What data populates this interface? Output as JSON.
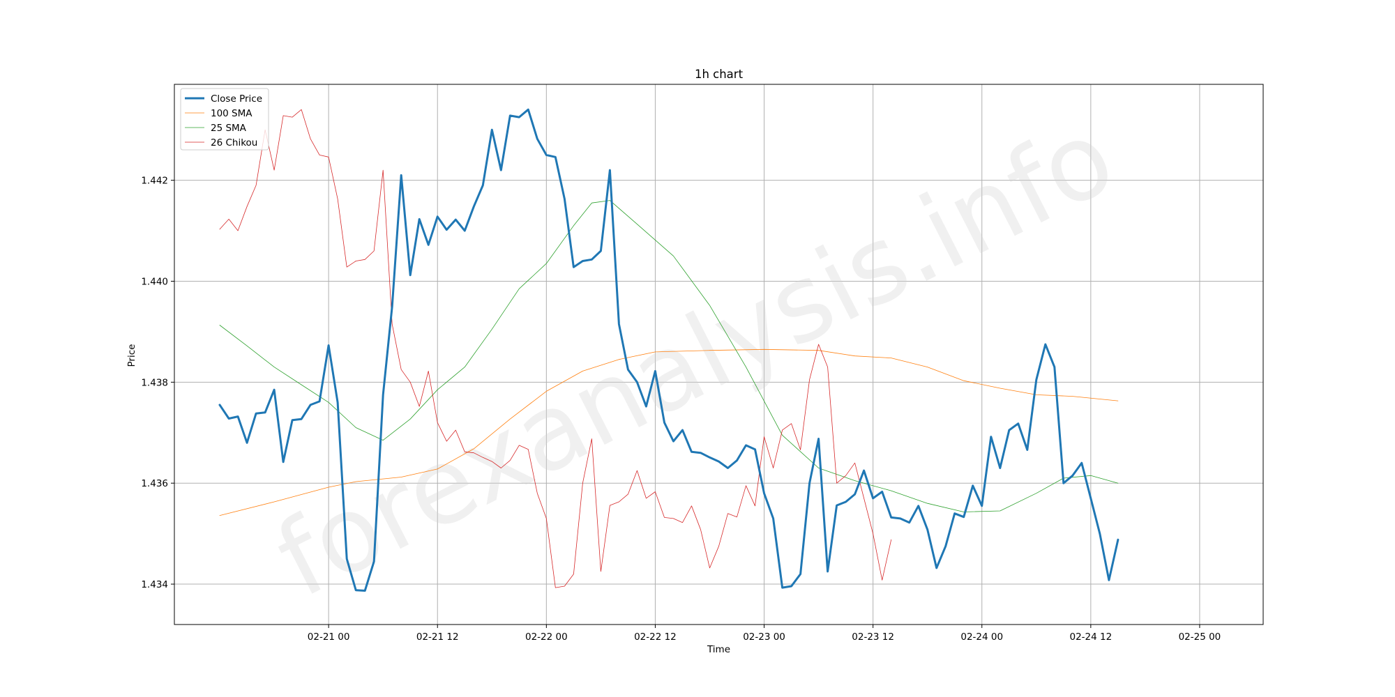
{
  "watermark": "forexanalysis.info",
  "chart_data": {
    "type": "line",
    "title": "1h chart",
    "xlabel": "Time",
    "ylabel": "Price",
    "xlim": [
      "2024-02-20 07:00",
      "2024-02-25 07:00"
    ],
    "ylim": [
      1.4332,
      1.4439
    ],
    "x_ticks": [
      {
        "at": "2024-02-21 00:00",
        "label": "02-21 00"
      },
      {
        "at": "2024-02-21 12:00",
        "label": "02-21 12"
      },
      {
        "at": "2024-02-22 00:00",
        "label": "02-22 00"
      },
      {
        "at": "2024-02-22 12:00",
        "label": "02-22 12"
      },
      {
        "at": "2024-02-23 00:00",
        "label": "02-23 00"
      },
      {
        "at": "2024-02-23 12:00",
        "label": "02-23 12"
      },
      {
        "at": "2024-02-24 00:00",
        "label": "02-24 00"
      },
      {
        "at": "2024-02-24 12:00",
        "label": "02-24 12"
      },
      {
        "at": "2024-02-25 00:00",
        "label": "02-25 00"
      }
    ],
    "y_ticks": [
      {
        "value": 1.434,
        "label": "1.434"
      },
      {
        "value": 1.436,
        "label": "1.436"
      },
      {
        "value": 1.438,
        "label": "1.438"
      },
      {
        "value": 1.44,
        "label": "1.440"
      },
      {
        "value": 1.442,
        "label": "1.442"
      }
    ],
    "grid": true,
    "legend_position": "top-left",
    "series": [
      {
        "name": "Close Price",
        "color": "#1f77b4",
        "width": 3,
        "points": [
          [
            "2024-02-20 12:00",
            1.43755
          ],
          [
            "2024-02-20 13:00",
            1.43728
          ],
          [
            "2024-02-20 14:00",
            1.43732
          ],
          [
            "2024-02-20 15:00",
            1.4368
          ],
          [
            "2024-02-20 16:00",
            1.43738
          ],
          [
            "2024-02-20 17:00",
            1.4374
          ],
          [
            "2024-02-20 18:00",
            1.43785
          ],
          [
            "2024-02-20 19:00",
            1.43642
          ],
          [
            "2024-02-20 20:00",
            1.43725
          ],
          [
            "2024-02-20 21:00",
            1.43727
          ],
          [
            "2024-02-20 22:00",
            1.43755
          ],
          [
            "2024-02-20 23:00",
            1.43762
          ],
          [
            "2024-02-21 00:00",
            1.43873
          ],
          [
            "2024-02-21 01:00",
            1.4376
          ],
          [
            "2024-02-21 02:00",
            1.4345
          ],
          [
            "2024-02-21 03:00",
            1.43388
          ],
          [
            "2024-02-21 04:00",
            1.43387
          ],
          [
            "2024-02-21 05:00",
            1.43445
          ],
          [
            "2024-02-21 06:00",
            1.43775
          ],
          [
            "2024-02-21 07:00",
            1.4395
          ],
          [
            "2024-02-21 08:00",
            1.4421
          ],
          [
            "2024-02-21 09:00",
            1.44012
          ],
          [
            "2024-02-21 10:00",
            1.44123
          ],
          [
            "2024-02-21 11:00",
            1.44072
          ],
          [
            "2024-02-21 12:00",
            1.44128
          ],
          [
            "2024-02-21 13:00",
            1.44102
          ],
          [
            "2024-02-21 14:00",
            1.44122
          ],
          [
            "2024-02-21 15:00",
            1.441
          ],
          [
            "2024-02-21 16:00",
            1.44148
          ],
          [
            "2024-02-21 17:00",
            1.4419
          ],
          [
            "2024-02-21 18:00",
            1.443
          ],
          [
            "2024-02-21 19:00",
            1.4422
          ],
          [
            "2024-02-21 20:00",
            1.44328
          ],
          [
            "2024-02-21 21:00",
            1.44325
          ],
          [
            "2024-02-21 22:00",
            1.4434
          ],
          [
            "2024-02-21 23:00",
            1.44282
          ],
          [
            "2024-02-22 00:00",
            1.4425
          ],
          [
            "2024-02-22 01:00",
            1.44246
          ],
          [
            "2024-02-22 02:00",
            1.44163
          ],
          [
            "2024-02-22 03:00",
            1.44028
          ],
          [
            "2024-02-22 04:00",
            1.4404
          ],
          [
            "2024-02-22 05:00",
            1.44043
          ],
          [
            "2024-02-22 06:00",
            1.4406
          ],
          [
            "2024-02-22 07:00",
            1.4422
          ],
          [
            "2024-02-22 08:00",
            1.43915
          ],
          [
            "2024-02-22 09:00",
            1.43825
          ],
          [
            "2024-02-22 10:00",
            1.438
          ],
          [
            "2024-02-22 11:00",
            1.43752
          ],
          [
            "2024-02-22 12:00",
            1.43822
          ],
          [
            "2024-02-22 13:00",
            1.4372
          ],
          [
            "2024-02-22 14:00",
            1.43683
          ],
          [
            "2024-02-22 15:00",
            1.43705
          ],
          [
            "2024-02-22 16:00",
            1.43662
          ],
          [
            "2024-02-22 17:00",
            1.4366
          ],
          [
            "2024-02-22 18:00",
            1.43651
          ],
          [
            "2024-02-22 19:00",
            1.43643
          ],
          [
            "2024-02-22 20:00",
            1.4363
          ],
          [
            "2024-02-22 21:00",
            1.43645
          ],
          [
            "2024-02-22 22:00",
            1.43675
          ],
          [
            "2024-02-22 23:00",
            1.43667
          ],
          [
            "2024-02-23 00:00",
            1.4358
          ],
          [
            "2024-02-23 01:00",
            1.4353
          ],
          [
            "2024-02-23 02:00",
            1.43393
          ],
          [
            "2024-02-23 03:00",
            1.43396
          ],
          [
            "2024-02-23 04:00",
            1.4342
          ],
          [
            "2024-02-23 05:00",
            1.436
          ],
          [
            "2024-02-23 06:00",
            1.43688
          ],
          [
            "2024-02-23 07:00",
            1.43425
          ],
          [
            "2024-02-23 08:00",
            1.43556
          ],
          [
            "2024-02-23 09:00",
            1.43563
          ],
          [
            "2024-02-23 10:00",
            1.43578
          ],
          [
            "2024-02-23 11:00",
            1.43625
          ],
          [
            "2024-02-23 12:00",
            1.4357
          ],
          [
            "2024-02-23 13:00",
            1.43583
          ],
          [
            "2024-02-23 14:00",
            1.43532
          ],
          [
            "2024-02-23 15:00",
            1.4353
          ],
          [
            "2024-02-23 16:00",
            1.43522
          ],
          [
            "2024-02-23 17:00",
            1.43555
          ],
          [
            "2024-02-23 18:00",
            1.43508
          ],
          [
            "2024-02-23 19:00",
            1.43432
          ],
          [
            "2024-02-23 20:00",
            1.43475
          ],
          [
            "2024-02-23 21:00",
            1.4354
          ],
          [
            "2024-02-23 22:00",
            1.43533
          ],
          [
            "2024-02-23 23:00",
            1.43595
          ],
          [
            "2024-02-24 00:00",
            1.43555
          ],
          [
            "2024-02-24 01:00",
            1.43692
          ],
          [
            "2024-02-24 02:00",
            1.4363
          ],
          [
            "2024-02-24 03:00",
            1.43705
          ],
          [
            "2024-02-24 04:00",
            1.43718
          ],
          [
            "2024-02-24 05:00",
            1.43666
          ],
          [
            "2024-02-24 06:00",
            1.43805
          ],
          [
            "2024-02-24 07:00",
            1.43875
          ],
          [
            "2024-02-24 08:00",
            1.4383
          ],
          [
            "2024-02-24 09:00",
            1.436
          ],
          [
            "2024-02-24 10:00",
            1.43615
          ],
          [
            "2024-02-24 11:00",
            1.4364
          ],
          [
            "2024-02-24 12:00",
            1.4357
          ],
          [
            "2024-02-24 13:00",
            1.435
          ],
          [
            "2024-02-24 14:00",
            1.43408
          ],
          [
            "2024-02-24 15:00",
            1.43488
          ]
        ]
      },
      {
        "name": "100 SMA",
        "color": "#ff7f0e",
        "width": 0.8,
        "points": [
          [
            "2024-02-20 12:00",
            1.43536
          ],
          [
            "2024-02-20 18:00",
            1.43563
          ],
          [
            "2024-02-21 00:00",
            1.43592
          ],
          [
            "2024-02-21 03:00",
            1.43603
          ],
          [
            "2024-02-21 08:00",
            1.43612
          ],
          [
            "2024-02-21 12:00",
            1.43628
          ],
          [
            "2024-02-21 16:00",
            1.43668
          ],
          [
            "2024-02-21 20:00",
            1.43727
          ],
          [
            "2024-02-22 00:00",
            1.43782
          ],
          [
            "2024-02-22 04:00",
            1.43822
          ],
          [
            "2024-02-22 08:00",
            1.43845
          ],
          [
            "2024-02-22 12:00",
            1.4386
          ],
          [
            "2024-02-22 18:00",
            1.43863
          ],
          [
            "2024-02-23 00:00",
            1.43865
          ],
          [
            "2024-02-23 06:00",
            1.43863
          ],
          [
            "2024-02-23 10:00",
            1.43852
          ],
          [
            "2024-02-23 14:00",
            1.43848
          ],
          [
            "2024-02-23 18:00",
            1.4383
          ],
          [
            "2024-02-23 22:00",
            1.43803
          ],
          [
            "2024-02-24 02:00",
            1.43788
          ],
          [
            "2024-02-24 06:00",
            1.43775
          ],
          [
            "2024-02-24 10:00",
            1.43772
          ],
          [
            "2024-02-24 15:00",
            1.43763
          ]
        ]
      },
      {
        "name": "25 SMA",
        "color": "#2ca02c",
        "width": 0.8,
        "points": [
          [
            "2024-02-20 12:00",
            1.43913
          ],
          [
            "2024-02-20 15:00",
            1.43872
          ],
          [
            "2024-02-20 18:00",
            1.4383
          ],
          [
            "2024-02-20 21:00",
            1.43795
          ],
          [
            "2024-02-21 00:00",
            1.4376
          ],
          [
            "2024-02-21 03:00",
            1.4371
          ],
          [
            "2024-02-21 06:00",
            1.43685
          ],
          [
            "2024-02-21 09:00",
            1.43727
          ],
          [
            "2024-02-21 12:00",
            1.43785
          ],
          [
            "2024-02-21 15:00",
            1.4383
          ],
          [
            "2024-02-21 18:00",
            1.43905
          ],
          [
            "2024-02-21 21:00",
            1.43985
          ],
          [
            "2024-02-22 00:00",
            1.44035
          ],
          [
            "2024-02-22 03:00",
            1.4411
          ],
          [
            "2024-02-22 05:00",
            1.44155
          ],
          [
            "2024-02-22 07:00",
            1.4416
          ],
          [
            "2024-02-22 10:00",
            1.44113
          ],
          [
            "2024-02-22 14:00",
            1.4405
          ],
          [
            "2024-02-22 18:00",
            1.43952
          ],
          [
            "2024-02-22 22:00",
            1.4383
          ],
          [
            "2024-02-23 02:00",
            1.43695
          ],
          [
            "2024-02-23 06:00",
            1.4363
          ],
          [
            "2024-02-23 10:00",
            1.43605
          ],
          [
            "2024-02-23 14:00",
            1.43585
          ],
          [
            "2024-02-23 18:00",
            1.4356
          ],
          [
            "2024-02-23 22:00",
            1.43543
          ],
          [
            "2024-02-24 02:00",
            1.43545
          ],
          [
            "2024-02-24 06:00",
            1.4358
          ],
          [
            "2024-02-24 09:00",
            1.4361
          ],
          [
            "2024-02-24 12:00",
            1.43615
          ],
          [
            "2024-02-24 15:00",
            1.436
          ]
        ]
      },
      {
        "name": "26 Chikou",
        "color": "#d62728",
        "width": 0.8,
        "points": [
          [
            "2024-02-20 12:00",
            1.44103
          ],
          [
            "2024-02-20 13:00",
            1.44123
          ],
          [
            "2024-02-20 14:00",
            1.441
          ],
          [
            "2024-02-20 15:00",
            1.44148
          ],
          [
            "2024-02-20 16:00",
            1.4419
          ],
          [
            "2024-02-20 17:00",
            1.443
          ],
          [
            "2024-02-20 18:00",
            1.4422
          ],
          [
            "2024-02-20 19:00",
            1.44328
          ],
          [
            "2024-02-20 20:00",
            1.44325
          ],
          [
            "2024-02-20 21:00",
            1.4434
          ],
          [
            "2024-02-20 22:00",
            1.44282
          ],
          [
            "2024-02-20 23:00",
            1.4425
          ],
          [
            "2024-02-21 00:00",
            1.44246
          ],
          [
            "2024-02-21 01:00",
            1.44163
          ],
          [
            "2024-02-21 02:00",
            1.44028
          ],
          [
            "2024-02-21 03:00",
            1.4404
          ],
          [
            "2024-02-21 04:00",
            1.44043
          ],
          [
            "2024-02-21 05:00",
            1.4406
          ],
          [
            "2024-02-21 06:00",
            1.4422
          ],
          [
            "2024-02-21 07:00",
            1.43915
          ],
          [
            "2024-02-21 08:00",
            1.43825
          ],
          [
            "2024-02-21 09:00",
            1.438
          ],
          [
            "2024-02-21 10:00",
            1.43752
          ],
          [
            "2024-02-21 11:00",
            1.43822
          ],
          [
            "2024-02-21 12:00",
            1.4372
          ],
          [
            "2024-02-21 13:00",
            1.43683
          ],
          [
            "2024-02-21 14:00",
            1.43705
          ],
          [
            "2024-02-21 15:00",
            1.43662
          ],
          [
            "2024-02-21 16:00",
            1.4366
          ],
          [
            "2024-02-21 17:00",
            1.43651
          ],
          [
            "2024-02-21 18:00",
            1.43643
          ],
          [
            "2024-02-21 19:00",
            1.4363
          ],
          [
            "2024-02-21 20:00",
            1.43645
          ],
          [
            "2024-02-21 21:00",
            1.43675
          ],
          [
            "2024-02-21 22:00",
            1.43667
          ],
          [
            "2024-02-21 23:00",
            1.4358
          ],
          [
            "2024-02-22 00:00",
            1.4353
          ],
          [
            "2024-02-22 01:00",
            1.43393
          ],
          [
            "2024-02-22 02:00",
            1.43396
          ],
          [
            "2024-02-22 03:00",
            1.4342
          ],
          [
            "2024-02-22 04:00",
            1.436
          ],
          [
            "2024-02-22 05:00",
            1.43688
          ],
          [
            "2024-02-22 06:00",
            1.43425
          ],
          [
            "2024-02-22 07:00",
            1.43556
          ],
          [
            "2024-02-22 08:00",
            1.43563
          ],
          [
            "2024-02-22 09:00",
            1.43578
          ],
          [
            "2024-02-22 10:00",
            1.43625
          ],
          [
            "2024-02-22 11:00",
            1.4357
          ],
          [
            "2024-02-22 12:00",
            1.43583
          ],
          [
            "2024-02-22 13:00",
            1.43532
          ],
          [
            "2024-02-22 14:00",
            1.4353
          ],
          [
            "2024-02-22 15:00",
            1.43522
          ],
          [
            "2024-02-22 16:00",
            1.43555
          ],
          [
            "2024-02-22 17:00",
            1.43508
          ],
          [
            "2024-02-22 18:00",
            1.43432
          ],
          [
            "2024-02-22 19:00",
            1.43475
          ],
          [
            "2024-02-22 20:00",
            1.4354
          ],
          [
            "2024-02-22 21:00",
            1.43533
          ],
          [
            "2024-02-22 22:00",
            1.43595
          ],
          [
            "2024-02-22 23:00",
            1.43555
          ],
          [
            "2024-02-23 00:00",
            1.43692
          ],
          [
            "2024-02-23 01:00",
            1.4363
          ],
          [
            "2024-02-23 02:00",
            1.43705
          ],
          [
            "2024-02-23 03:00",
            1.43718
          ],
          [
            "2024-02-23 04:00",
            1.43666
          ],
          [
            "2024-02-23 05:00",
            1.43805
          ],
          [
            "2024-02-23 06:00",
            1.43875
          ],
          [
            "2024-02-23 07:00",
            1.4383
          ],
          [
            "2024-02-23 08:00",
            1.436
          ],
          [
            "2024-02-23 09:00",
            1.43615
          ],
          [
            "2024-02-23 10:00",
            1.4364
          ],
          [
            "2024-02-23 11:00",
            1.4357
          ],
          [
            "2024-02-23 12:00",
            1.435
          ],
          [
            "2024-02-23 13:00",
            1.43408
          ],
          [
            "2024-02-23 14:00",
            1.43488
          ]
        ]
      }
    ]
  }
}
